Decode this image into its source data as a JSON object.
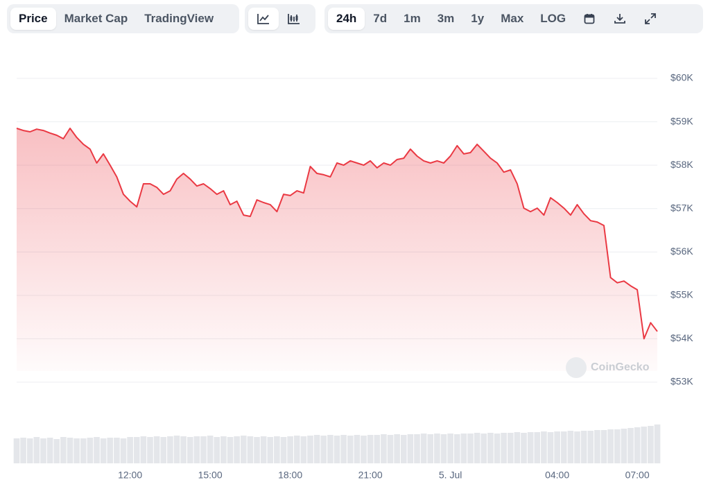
{
  "toolbar": {
    "views": [
      "Price",
      "Market Cap",
      "TradingView"
    ],
    "ranges": [
      "24h",
      "7d",
      "1m",
      "3m",
      "1y",
      "Max",
      "LOG"
    ]
  },
  "chart_data": {
    "type": "area",
    "watermark": "CoinGecko",
    "categories": [
      null,
      null,
      null,
      null,
      null,
      null,
      null,
      null,
      null,
      null,
      null,
      null,
      null,
      null,
      null,
      null,
      null,
      "12:00",
      null,
      null,
      null,
      null,
      null,
      null,
      null,
      null,
      null,
      null,
      null,
      "15:00",
      null,
      null,
      null,
      null,
      null,
      null,
      null,
      null,
      null,
      null,
      null,
      "18:00",
      null,
      null,
      null,
      null,
      null,
      null,
      null,
      null,
      null,
      null,
      null,
      "21:00",
      null,
      null,
      null,
      null,
      null,
      null,
      null,
      null,
      null,
      null,
      null,
      "5. Jul",
      null,
      null,
      null,
      null,
      null,
      null,
      null,
      null,
      null,
      null,
      null,
      null,
      null,
      null,
      null,
      "04:00",
      null,
      null,
      null,
      null,
      null,
      null,
      null,
      null,
      null,
      null,
      null,
      "07:00",
      null,
      null,
      null
    ],
    "series": [
      {
        "color": "#ea3943",
        "values": [
          58850,
          58800,
          58770,
          58830,
          58800,
          58740,
          58690,
          58610,
          58850,
          58640,
          58480,
          58370,
          58050,
          58260,
          58000,
          57730,
          57330,
          57170,
          57040,
          57570,
          57570,
          57490,
          57330,
          57410,
          57680,
          57810,
          57680,
          57520,
          57570,
          57460,
          57330,
          57410,
          57090,
          57170,
          56850,
          56820,
          57200,
          57140,
          57090,
          56930,
          57330,
          57300,
          57410,
          57360,
          57970,
          57810,
          57780,
          57730,
          58050,
          58000,
          58100,
          58050,
          58000,
          58100,
          57940,
          58050,
          58000,
          58130,
          58160,
          58370,
          58210,
          58100,
          58050,
          58100,
          58050,
          58210,
          58450,
          58260,
          58290,
          58480,
          58320,
          58160,
          58050,
          57840,
          57890,
          57570,
          57010,
          56930,
          57010,
          56850,
          57250,
          57140,
          57010,
          56850,
          57090,
          56880,
          56720,
          56690,
          56610,
          55410,
          55290,
          55330,
          55220,
          55130,
          54000,
          54370,
          54170
        ]
      }
    ],
    "volume": {
      "color": "#e4e6ea",
      "ylim": [
        0,
        100
      ],
      "values": [
        36,
        37,
        36,
        38,
        36,
        37,
        35,
        38,
        37,
        36,
        36,
        37,
        38,
        36,
        37,
        37,
        36,
        38,
        38,
        39,
        38,
        39,
        38,
        39,
        40,
        39,
        38,
        39,
        39,
        40,
        38,
        39,
        38,
        39,
        40,
        39,
        38,
        39,
        38,
        39,
        38,
        39,
        40,
        39,
        40,
        41,
        40,
        41,
        40,
        41,
        40,
        41,
        40,
        41,
        41,
        42,
        41,
        42,
        41,
        42,
        42,
        43,
        42,
        43,
        42,
        43,
        42,
        43,
        43,
        44,
        43,
        44,
        43,
        44,
        44,
        45,
        44,
        45,
        45,
        46,
        45,
        46,
        46,
        47,
        46,
        47,
        47,
        48,
        48,
        49,
        49,
        50,
        51,
        52,
        53,
        54,
        56
      ]
    },
    "ylim": [
      53000,
      60000
    ],
    "yticks": [
      {
        "value": 53000,
        "label": "$53K"
      },
      {
        "value": 54000,
        "label": "$54K"
      },
      {
        "value": 55000,
        "label": "$55K"
      },
      {
        "value": 56000,
        "label": "$56K"
      },
      {
        "value": 57000,
        "label": "$57K"
      },
      {
        "value": 58000,
        "label": "$58K"
      },
      {
        "value": 59000,
        "label": "$59K"
      },
      {
        "value": 60000,
        "label": "$60K"
      }
    ],
    "grid": true
  }
}
